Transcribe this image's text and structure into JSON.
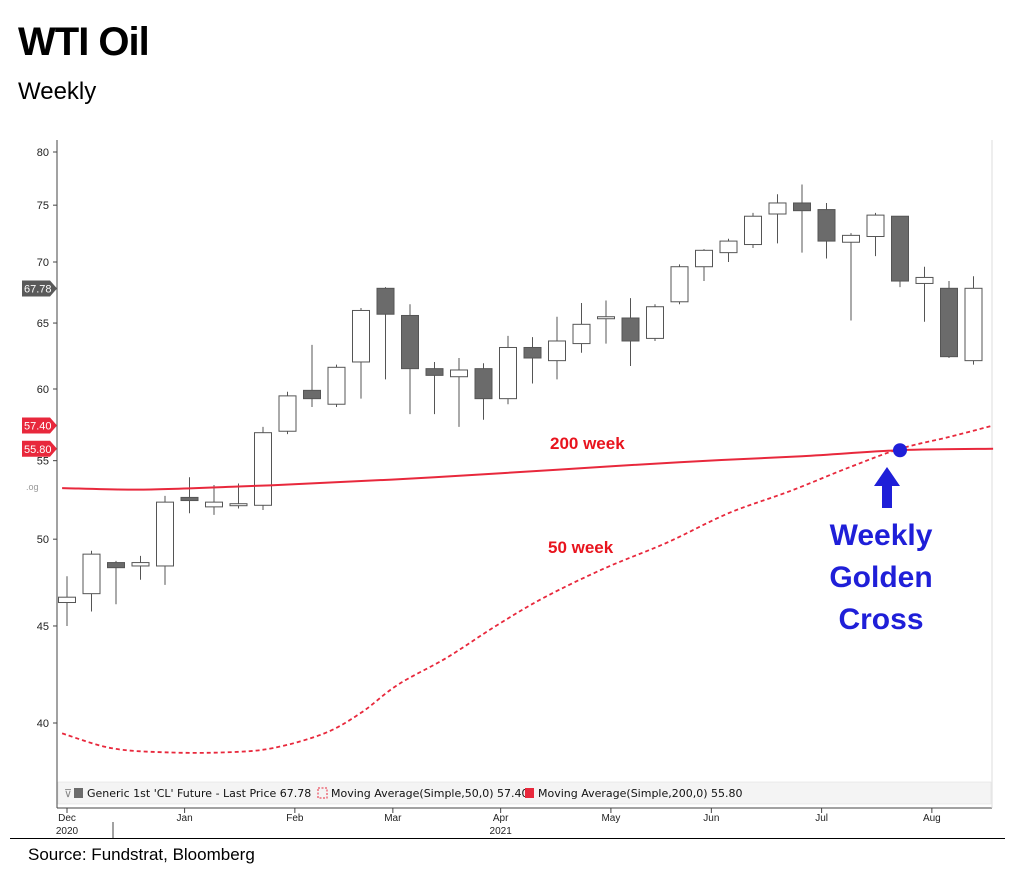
{
  "header": {
    "title": "WTI Oil",
    "subtitle": "Weekly"
  },
  "footer": {
    "source": "Source: Fundstrat, Bloomberg"
  },
  "legend": {
    "candle": "Generic 1st 'CL' Future - Last Price 67.78",
    "ma50": "Moving Average(Simple,50,0) 57.40",
    "ma200": "Moving Average(Simple,200,0) 55.80"
  },
  "price_tags": {
    "last": "67.78",
    "ma50": "57.40",
    "ma200": "55.80",
    "og": ".og"
  },
  "annotations": {
    "ma200_label": "200 week",
    "ma50_label": "50 week",
    "golden_cross": [
      "Weekly",
      "Golden",
      "Cross"
    ]
  },
  "colors": {
    "up_fill": "#ffffff",
    "down_fill": "#6b6b6b",
    "ma_red": "#e8283c",
    "annotation_red": "#e8141e",
    "annotation_blue": "#1f1fd8",
    "last_tag": "#555555"
  },
  "chart_data": {
    "type": "candlestick",
    "title": "WTI Oil",
    "subtitle": "Weekly",
    "y_ticks": [
      40,
      45,
      50,
      55,
      60,
      65,
      70,
      75,
      80
    ],
    "ylim": [
      37,
      81
    ],
    "y_scale": "log",
    "x_labels": [
      {
        "label": "Dec",
        "sub": "2020",
        "week": 0
      },
      {
        "label": "Jan",
        "sub": "",
        "week": 4.8
      },
      {
        "label": "Feb",
        "sub": "",
        "week": 9.3
      },
      {
        "label": "Mar",
        "sub": "",
        "week": 13.3
      },
      {
        "label": "Apr",
        "sub": "2021",
        "week": 17.7
      },
      {
        "label": "May",
        "sub": "",
        "week": 22.2
      },
      {
        "label": "Jun",
        "sub": "",
        "week": 26.3
      },
      {
        "label": "Jul",
        "sub": "",
        "week": 30.8
      },
      {
        "label": "Aug",
        "sub": "",
        "week": 35.3
      }
    ],
    "candles": [
      {
        "o": 46.3,
        "h": 47.8,
        "l": 45.0,
        "c": 46.6
      },
      {
        "o": 46.8,
        "h": 49.3,
        "l": 45.8,
        "c": 49.1
      },
      {
        "o": 48.6,
        "h": 48.7,
        "l": 46.2,
        "c": 48.3
      },
      {
        "o": 48.4,
        "h": 49.0,
        "l": 47.6,
        "c": 48.6
      },
      {
        "o": 48.4,
        "h": 52.7,
        "l": 47.3,
        "c": 52.3
      },
      {
        "o": 52.6,
        "h": 53.9,
        "l": 51.6,
        "c": 52.4
      },
      {
        "o": 52.0,
        "h": 53.4,
        "l": 51.5,
        "c": 52.3
      },
      {
        "o": 52.1,
        "h": 53.5,
        "l": 51.9,
        "c": 52.2
      },
      {
        "o": 52.1,
        "h": 57.3,
        "l": 51.8,
        "c": 56.9
      },
      {
        "o": 57.0,
        "h": 59.8,
        "l": 56.8,
        "c": 59.5
      },
      {
        "o": 59.9,
        "h": 63.3,
        "l": 58.7,
        "c": 59.3
      },
      {
        "o": 58.9,
        "h": 61.8,
        "l": 58.7,
        "c": 61.6
      },
      {
        "o": 62.0,
        "h": 66.2,
        "l": 59.3,
        "c": 66.0
      },
      {
        "o": 67.8,
        "h": 67.9,
        "l": 60.7,
        "c": 65.7
      },
      {
        "o": 65.6,
        "h": 66.5,
        "l": 58.2,
        "c": 61.5
      },
      {
        "o": 61.5,
        "h": 62.0,
        "l": 58.2,
        "c": 61.0
      },
      {
        "o": 60.9,
        "h": 62.3,
        "l": 57.3,
        "c": 61.4
      },
      {
        "o": 61.5,
        "h": 61.9,
        "l": 57.8,
        "c": 59.3
      },
      {
        "o": 59.3,
        "h": 64.0,
        "l": 58.9,
        "c": 63.1
      },
      {
        "o": 63.1,
        "h": 63.9,
        "l": 60.4,
        "c": 62.3
      },
      {
        "o": 62.1,
        "h": 65.5,
        "l": 60.7,
        "c": 63.6
      },
      {
        "o": 63.4,
        "h": 66.6,
        "l": 62.7,
        "c": 64.9
      },
      {
        "o": 65.4,
        "h": 66.8,
        "l": 63.4,
        "c": 65.5
      },
      {
        "o": 65.4,
        "h": 67.0,
        "l": 61.7,
        "c": 63.6
      },
      {
        "o": 63.8,
        "h": 66.5,
        "l": 63.6,
        "c": 66.3
      },
      {
        "o": 66.7,
        "h": 69.8,
        "l": 66.5,
        "c": 69.6
      },
      {
        "o": 69.6,
        "h": 71.1,
        "l": 68.4,
        "c": 71.0
      },
      {
        "o": 70.8,
        "h": 72.0,
        "l": 70.0,
        "c": 71.8
      },
      {
        "o": 71.5,
        "h": 74.3,
        "l": 71.2,
        "c": 74.0
      },
      {
        "o": 74.2,
        "h": 76.0,
        "l": 71.6,
        "c": 75.2
      },
      {
        "o": 75.2,
        "h": 76.9,
        "l": 70.8,
        "c": 74.5
      },
      {
        "o": 74.6,
        "h": 75.2,
        "l": 70.3,
        "c": 71.8
      },
      {
        "o": 71.7,
        "h": 72.5,
        "l": 65.2,
        "c": 72.3
      },
      {
        "o": 72.2,
        "h": 74.3,
        "l": 70.5,
        "c": 74.1
      },
      {
        "o": 74.0,
        "h": 74.0,
        "l": 67.9,
        "c": 68.4
      },
      {
        "o": 68.2,
        "h": 69.6,
        "l": 65.1,
        "c": 68.7
      },
      {
        "o": 67.8,
        "h": 68.4,
        "l": 62.3,
        "c": 62.4
      },
      {
        "o": 62.1,
        "h": 68.8,
        "l": 61.8,
        "c": 67.8
      }
    ],
    "ma50": [
      {
        "week": -0.2,
        "value": 39.5
      },
      {
        "week": 1.8,
        "value": 38.8
      },
      {
        "week": 4.0,
        "value": 38.6
      },
      {
        "week": 6.5,
        "value": 38.6
      },
      {
        "week": 8.4,
        "value": 38.8
      },
      {
        "week": 10.5,
        "value": 39.5
      },
      {
        "week": 12.0,
        "value": 40.5
      },
      {
        "week": 13.5,
        "value": 41.9
      },
      {
        "week": 15.5,
        "value": 43.3
      },
      {
        "week": 17.5,
        "value": 45.0
      },
      {
        "week": 19.5,
        "value": 46.6
      },
      {
        "week": 22.0,
        "value": 48.3
      },
      {
        "week": 24.5,
        "value": 49.8
      },
      {
        "week": 27.0,
        "value": 51.6
      },
      {
        "week": 29.5,
        "value": 53.0
      },
      {
        "week": 32.0,
        "value": 54.6
      },
      {
        "week": 34.0,
        "value": 55.8
      },
      {
        "week": 36.0,
        "value": 56.6
      },
      {
        "week": 37.8,
        "value": 57.4
      }
    ],
    "ma200": [
      {
        "week": -0.2,
        "value": 53.2
      },
      {
        "week": 3.0,
        "value": 53.1
      },
      {
        "week": 7.0,
        "value": 53.3
      },
      {
        "week": 10.0,
        "value": 53.5
      },
      {
        "week": 15.0,
        "value": 53.9
      },
      {
        "week": 20.0,
        "value": 54.4
      },
      {
        "week": 25.0,
        "value": 54.9
      },
      {
        "week": 30.0,
        "value": 55.3
      },
      {
        "week": 34.0,
        "value": 55.7
      },
      {
        "week": 37.8,
        "value": 55.8
      }
    ],
    "golden_cross": {
      "week": 34.0,
      "value": 55.7
    }
  }
}
